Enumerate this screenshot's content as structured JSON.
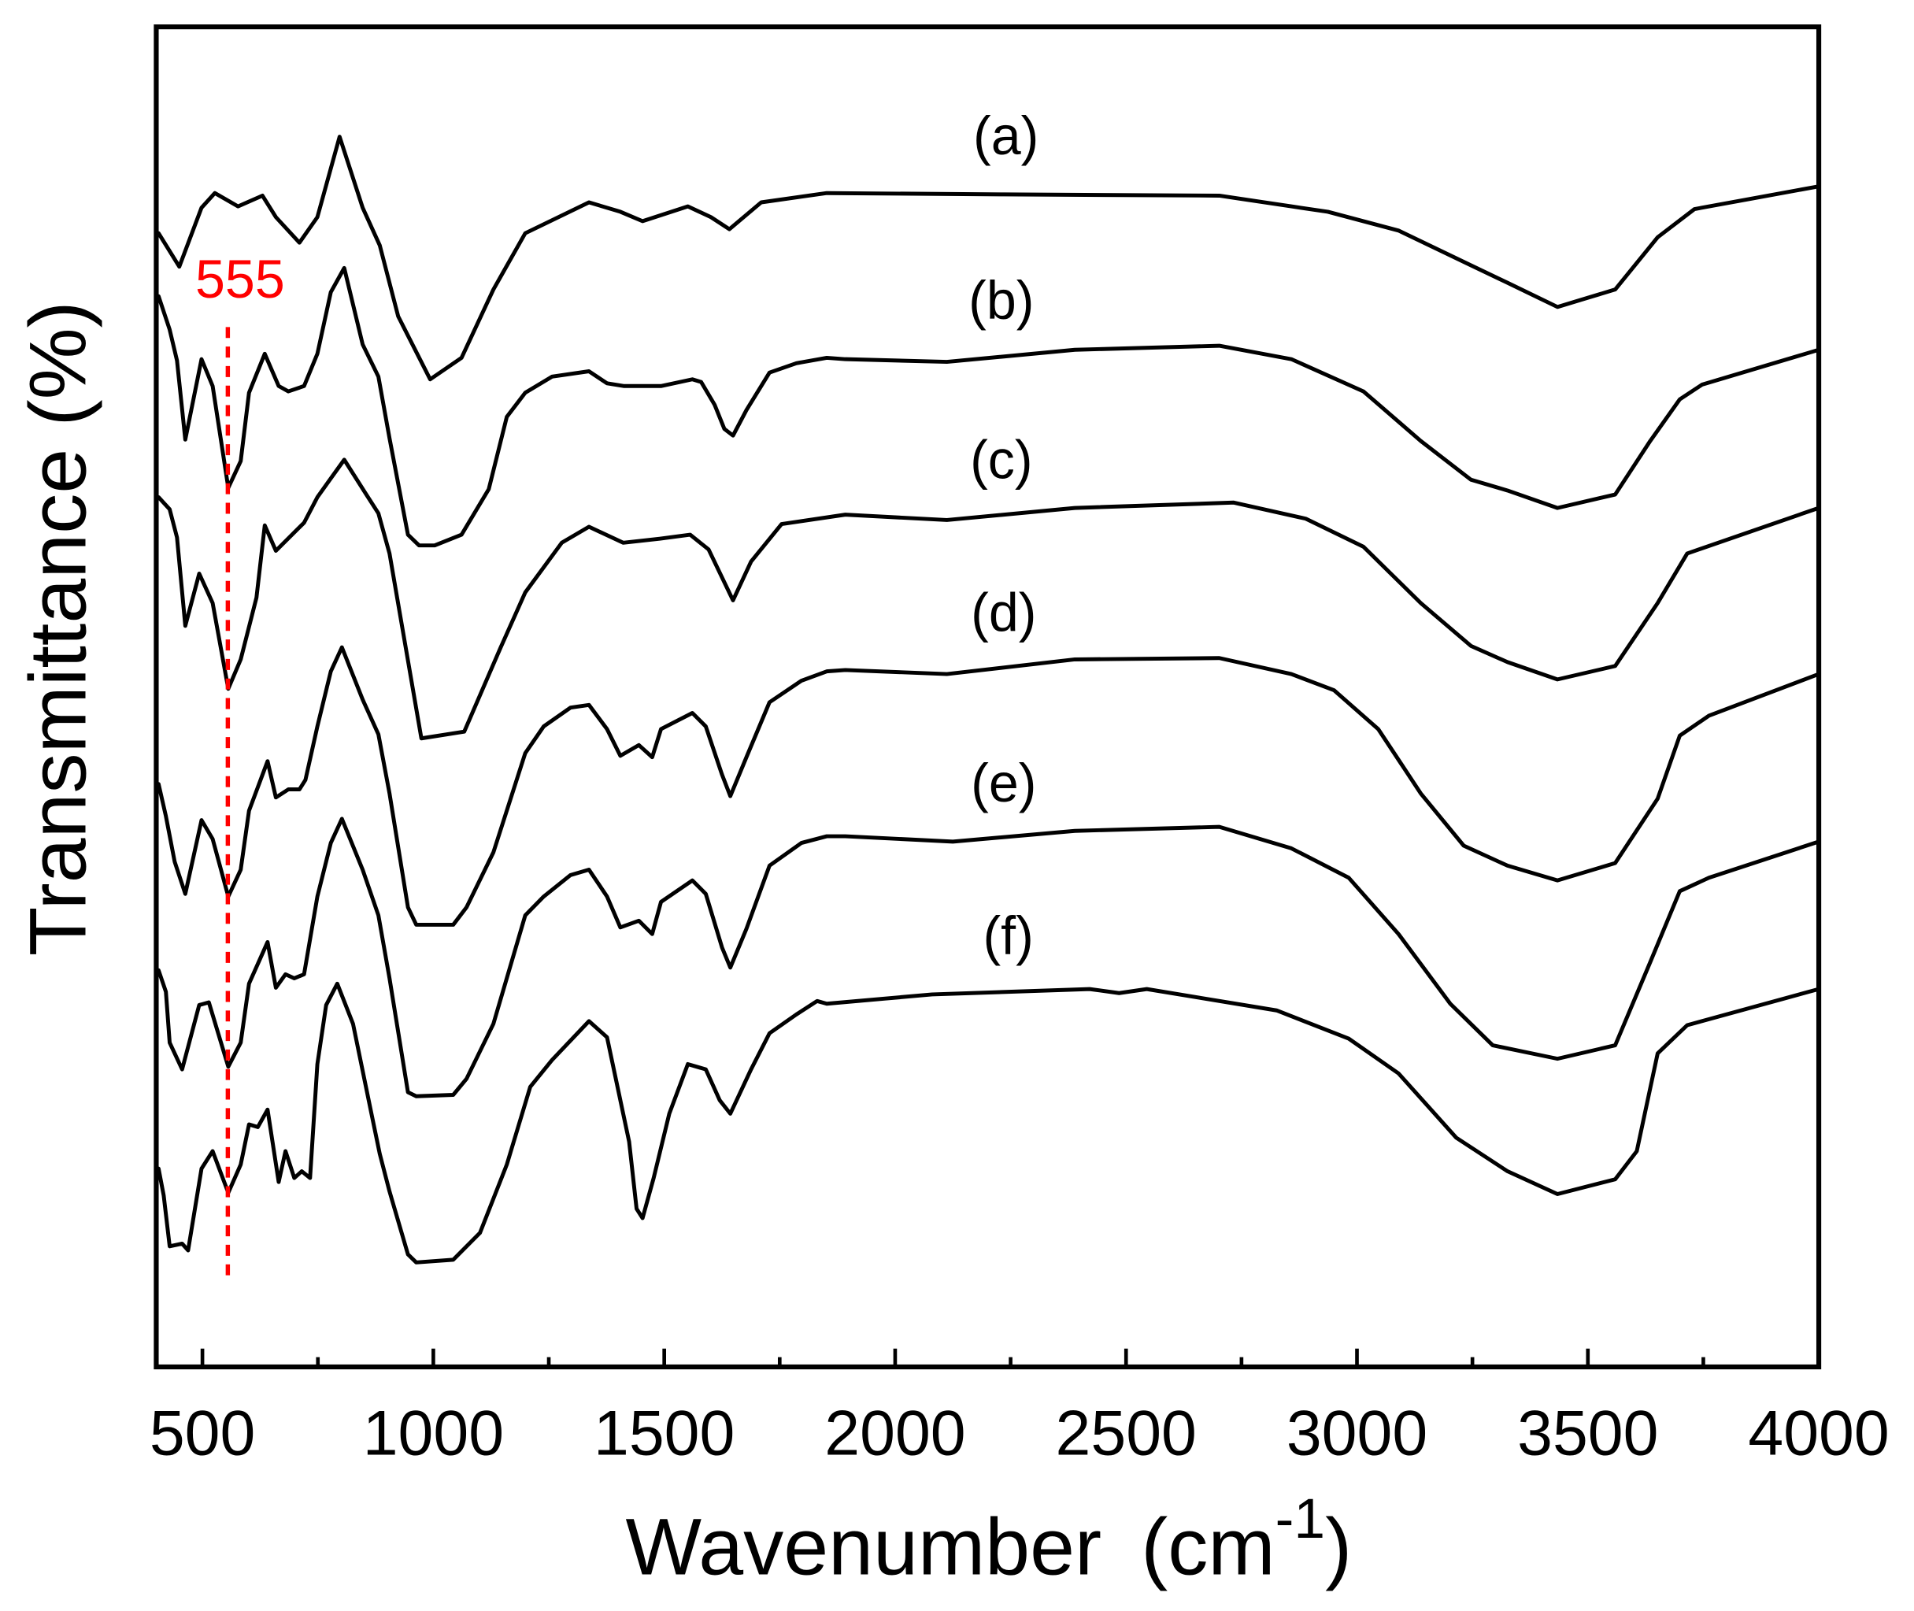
{
  "chart_data": {
    "type": "line",
    "title": "",
    "xlabel": "Wavenumber",
    "xlabel_unit_prefix": "(cm",
    "xlabel_unit_exp": "-1",
    "xlabel_unit_suffix": ")",
    "ylabel": "Transmittance (%)",
    "xlim": [
      400,
      4000
    ],
    "ylim": [
      0,
      100
    ],
    "x_major_ticks": [
      500,
      1000,
      1500,
      2000,
      2500,
      3000,
      3500,
      4000
    ],
    "x_tick_labels": [
      "500",
      "1000",
      "1500",
      "2000",
      "2500",
      "3000",
      "3500",
      "4000"
    ],
    "x_minor_ticks": [
      750,
      1250,
      1750,
      2250,
      2750,
      3250,
      3750
    ],
    "y_ticks_shown": false,
    "grid": false,
    "legend": "inline labels above each curve",
    "line_color": "#000000",
    "annotation_color": "#ff0000",
    "series": [
      {
        "name": "(a)",
        "label_pos": [
          2240,
          90.5
        ],
        "x": [
          405,
          450,
          498,
          527,
          577,
          630,
          659,
          710,
          749,
          797,
          847,
          884,
          924,
          993,
          1061,
          1130,
          1199,
          1337,
          1405,
          1453,
          1551,
          1601,
          1641,
          1710,
          1852,
          2236,
          2702,
          2858,
          2937,
          3090,
          3247,
          3326,
          3434,
          3559,
          3651,
          3731,
          4000
        ],
        "y": [
          84.6,
          82.1,
          86.5,
          87.6,
          86.6,
          87.4,
          85.8,
          83.9,
          85.8,
          91.8,
          86.5,
          83.7,
          78.4,
          73.7,
          75.3,
          80.4,
          84.6,
          86.9,
          86.2,
          85.5,
          86.6,
          85.8,
          84.9,
          86.9,
          87.6,
          87.5,
          87.4,
          86.6,
          86.2,
          84.8,
          82.2,
          80.9,
          79.1,
          80.4,
          84.3,
          86.4,
          88.1
        ]
      },
      {
        "name": "(b)",
        "label_pos": [
          2230,
          78.2
        ],
        "x": [
          405,
          429,
          445,
          463,
          498,
          522,
          556,
          583,
          601,
          635,
          665,
          686,
          720,
          749,
          778,
          807,
          847,
          881,
          905,
          945,
          969,
          1003,
          1061,
          1120,
          1159,
          1199,
          1257,
          1337,
          1376,
          1413,
          1493,
          1561,
          1580,
          1609,
          1630,
          1649,
          1678,
          1728,
          1786,
          1852,
          1892,
          2112,
          2389,
          2702,
          2858,
          3014,
          3138,
          3247,
          3326,
          3434,
          3559,
          3635,
          3699,
          3747,
          4000
        ],
        "y": [
          79.9,
          77.4,
          75.1,
          69.2,
          75.2,
          73.2,
          65.6,
          67.6,
          72.7,
          75.6,
          73.2,
          72.8,
          73.2,
          75.6,
          80.2,
          82.0,
          76.3,
          73.9,
          69.3,
          62.1,
          61.3,
          61.3,
          62.1,
          65.5,
          70.9,
          72.7,
          73.9,
          74.3,
          73.4,
          73.2,
          73.2,
          73.7,
          73.5,
          71.8,
          70.0,
          69.5,
          71.4,
          74.2,
          74.9,
          75.3,
          75.2,
          75.0,
          75.9,
          76.2,
          75.2,
          72.8,
          69.1,
          66.2,
          65.4,
          64.1,
          65.1,
          69.1,
          72.2,
          73.3,
          75.9
        ]
      },
      {
        "name": "(c)",
        "label_pos": [
          2230,
          66.3
        ],
        "x": [
          405,
          429,
          445,
          463,
          493,
          522,
          556,
          583,
          617,
          635,
          659,
          720,
          749,
          778,
          807,
          855,
          881,
          905,
          974,
          1067,
          1146,
          1199,
          1278,
          1337,
          1411,
          1490,
          1556,
          1596,
          1649,
          1688,
          1754,
          1892,
          2112,
          2389,
          2733,
          2889,
          3014,
          3138,
          3247,
          3326,
          3434,
          3559,
          3651,
          3715,
          4000
        ],
        "y": [
          64.9,
          64.0,
          61.9,
          55.3,
          59.2,
          57.0,
          50.6,
          52.8,
          57.4,
          62.8,
          60.9,
          63.0,
          64.9,
          66.3,
          67.7,
          65.1,
          63.7,
          60.7,
          46.9,
          47.4,
          53.7,
          57.8,
          61.5,
          62.7,
          61.5,
          61.8,
          62.1,
          61.0,
          57.2,
          60.1,
          62.9,
          63.6,
          63.2,
          64.1,
          64.5,
          63.3,
          61.2,
          57.0,
          53.8,
          52.6,
          51.3,
          52.3,
          57.0,
          60.7,
          64.1
        ]
      },
      {
        "name": "(d)",
        "label_pos": [
          2235,
          54.9
        ],
        "x": [
          405,
          421,
          440,
          463,
          498,
          522,
          556,
          583,
          601,
          641,
          659,
          686,
          710,
          723,
          749,
          778,
          802,
          847,
          881,
          905,
          945,
          963,
          1043,
          1072,
          1130,
          1199,
          1239,
          1297,
          1337,
          1376,
          1405,
          1445,
          1474,
          1493,
          1561,
          1590,
          1625,
          1643,
          1678,
          1728,
          1797,
          1852,
          1892,
          2112,
          2389,
          2702,
          2858,
          2950,
          3046,
          3138,
          3231,
          3326,
          3434,
          3559,
          3651,
          3699,
          3762,
          4000
        ],
        "y": [
          43.5,
          41.1,
          37.7,
          35.3,
          40.8,
          39.4,
          35.1,
          37.1,
          41.5,
          45.2,
          42.5,
          43.1,
          43.1,
          43.8,
          47.8,
          51.9,
          53.7,
          49.8,
          47.2,
          42.8,
          34.3,
          33.0,
          33.0,
          34.3,
          38.4,
          45.8,
          47.8,
          49.2,
          49.4,
          47.6,
          45.6,
          46.4,
          45.5,
          47.6,
          48.8,
          47.8,
          44.2,
          42.6,
          45.5,
          49.6,
          51.2,
          51.9,
          52.0,
          51.7,
          52.8,
          52.9,
          51.7,
          50.5,
          47.6,
          42.8,
          38.9,
          37.4,
          36.3,
          37.6,
          42.4,
          47.1,
          48.6,
          51.7
        ]
      },
      {
        "name": "(e)",
        "label_pos": [
          2235,
          42.2
        ],
        "x": [
          405,
          421,
          429,
          456,
          493,
          514,
          556,
          583,
          601,
          641,
          659,
          680,
          699,
          720,
          749,
          778,
          802,
          847,
          881,
          905,
          945,
          963,
          1043,
          1072,
          1130,
          1199,
          1239,
          1297,
          1337,
          1376,
          1405,
          1445,
          1474,
          1493,
          1561,
          1590,
          1625,
          1643,
          1678,
          1728,
          1797,
          1852,
          1892,
          2125,
          2389,
          2702,
          2858,
          2982,
          3090,
          3202,
          3294,
          3434,
          3559,
          3635,
          3699,
          3762,
          4000
        ],
        "y": [
          29.6,
          28.0,
          24.2,
          22.2,
          27.0,
          27.2,
          22.4,
          24.2,
          28.6,
          31.7,
          28.3,
          29.3,
          29.0,
          29.3,
          35.1,
          39.1,
          40.9,
          37.1,
          33.7,
          29.0,
          20.5,
          20.2,
          20.3,
          21.5,
          25.6,
          33.7,
          35.1,
          36.7,
          37.1,
          35.1,
          32.8,
          33.3,
          32.3,
          34.7,
          36.3,
          35.3,
          31.3,
          29.8,
          32.7,
          37.4,
          39.1,
          39.6,
          39.6,
          39.2,
          40.0,
          40.3,
          38.7,
          36.5,
          32.3,
          27.1,
          24.0,
          23.0,
          24.0,
          30.2,
          35.5,
          36.5,
          39.2
        ]
      },
      {
        "name": "(f)",
        "label_pos": [
          2245,
          30.8
        ],
        "x": [
          405,
          416,
          429,
          456,
          469,
          498,
          522,
          556,
          583,
          601,
          620,
          641,
          665,
          680,
          699,
          715,
          733,
          749,
          768,
          792,
          826,
          866,
          884,
          905,
          945,
          963,
          1043,
          1101,
          1159,
          1210,
          1257,
          1337,
          1376,
          1405,
          1424,
          1440,
          1453,
          1477,
          1511,
          1551,
          1590,
          1620,
          1643,
          1688,
          1728,
          1786,
          1831,
          1852,
          2080,
          2421,
          2485,
          2545,
          2826,
          2982,
          3090,
          3215,
          3326,
          3434,
          3559,
          3606,
          3651,
          3715,
          4000
        ],
        "y": [
          14.8,
          12.8,
          9.0,
          9.2,
          8.7,
          14.8,
          16.1,
          13.0,
          15.1,
          18.1,
          17.9,
          19.2,
          13.8,
          16.1,
          14.1,
          14.6,
          14.1,
          22.6,
          27.0,
          28.6,
          25.6,
          18.9,
          15.9,
          13.1,
          8.4,
          7.8,
          8.0,
          10.0,
          15.1,
          20.9,
          22.9,
          25.8,
          24.6,
          19.9,
          16.8,
          11.8,
          11.1,
          14.1,
          18.9,
          22.6,
          22.2,
          19.9,
          18.9,
          22.2,
          24.9,
          26.3,
          27.3,
          27.1,
          27.8,
          28.2,
          27.9,
          28.2,
          26.6,
          24.5,
          21.9,
          17.1,
          14.6,
          12.9,
          14.0,
          16.1,
          23.4,
          25.5,
          28.2
        ]
      }
    ],
    "annotations": [
      {
        "text": "555",
        "x": 555,
        "y_text": 79.8,
        "line_y": [
          77.6,
          6.2
        ],
        "style": "dashed vertical"
      }
    ]
  }
}
